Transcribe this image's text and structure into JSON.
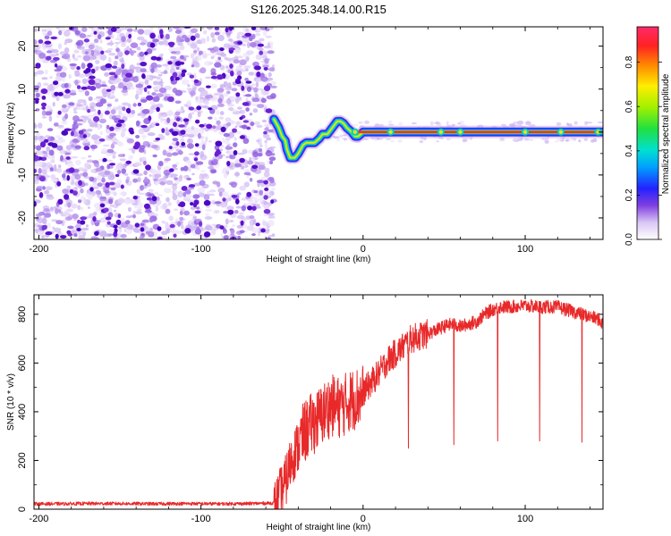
{
  "title": "S126.2025.348.14.00.R15",
  "chart_data": [
    {
      "type": "heatmap",
      "title": "S126.2025.348.14.00.R15",
      "xlabel": "Height of straight line (km)",
      "ylabel": "Frequency (Hz)",
      "xlim": [
        -203,
        148
      ],
      "ylim": [
        -25,
        24.5
      ],
      "x_ticks": [
        -200,
        -100,
        0,
        100
      ],
      "x_tick_labels": [
        "-200",
        "-100",
        "0",
        "100"
      ],
      "y_ticks": [
        -20,
        -10,
        0,
        10,
        20
      ],
      "y_tick_labels": [
        "-20",
        "-10",
        "0",
        "10",
        "20"
      ],
      "noise_region_x": [
        -203,
        -55
      ],
      "ridge": {
        "x": [
          -55,
          -52,
          -50,
          -48,
          -47,
          -45,
          -42,
          -40,
          -37,
          -35,
          -33,
          -30,
          -27,
          -25,
          -22,
          -20,
          -18,
          -16,
          -14,
          -12,
          -10,
          -7,
          -5,
          -3,
          0,
          5,
          10,
          20,
          40,
          60,
          80,
          100,
          120,
          140,
          148
        ],
        "freq": [
          3,
          1,
          -1,
          -2,
          -4,
          -6,
          -6,
          -5,
          -3,
          -2.5,
          -2.5,
          -2.5,
          -1.5,
          -0.5,
          -0.5,
          0.5,
          1.5,
          2.5,
          2.5,
          2,
          1,
          0,
          -1,
          -1,
          0,
          0,
          0,
          0,
          0,
          0,
          0,
          0,
          0,
          0,
          0
        ]
      },
      "colorbar": {
        "label": "Normalized spectral amplitude",
        "ticks": [
          0.0,
          0.2,
          0.4,
          0.6,
          0.8
        ],
        "tick_labels": [
          "0.0",
          "0.2",
          "0.4",
          "0.6",
          "0.8"
        ],
        "range": [
          0,
          0.96
        ]
      }
    },
    {
      "type": "line",
      "xlabel": "Height of straight line (km)",
      "ylabel": "SNR (10 * v/v)",
      "xlim": [
        -203,
        148
      ],
      "ylim": [
        0,
        880
      ],
      "x_ticks": [
        -200,
        -100,
        0,
        100
      ],
      "x_tick_labels": [
        "-200",
        "-100",
        "0",
        "100"
      ],
      "y_ticks": [
        0,
        200,
        400,
        600,
        800
      ],
      "y_tick_labels": [
        "0",
        "200",
        "400",
        "600",
        "800"
      ],
      "color": "#e8292a",
      "series": [
        {
          "name": "SNR",
          "x": [
            -203,
            -190,
            -170,
            -150,
            -130,
            -110,
            -90,
            -70,
            -55,
            -48,
            -44,
            -40,
            -36,
            -32,
            -28,
            -24,
            -20,
            -16,
            -12,
            -8,
            -4,
            0,
            5,
            10,
            15,
            20,
            25,
            30,
            40,
            50,
            55,
            60,
            70,
            75,
            80,
            85,
            90,
            100,
            110,
            120,
            130,
            135,
            140,
            145,
            148
          ],
          "y": [
            22,
            22,
            23,
            23,
            22,
            23,
            22,
            23,
            25,
            130,
            230,
            280,
            330,
            360,
            380,
            410,
            440,
            430,
            440,
            460,
            470,
            480,
            520,
            560,
            610,
            640,
            670,
            700,
            720,
            750,
            760,
            750,
            770,
            800,
            820,
            830,
            830,
            835,
            830,
            830,
            810,
            800,
            790,
            780,
            760
          ]
        }
      ],
      "dropouts": [
        {
          "x": 28,
          "y": 250
        },
        {
          "x": 56,
          "y": 265
        },
        {
          "x": 83,
          "y": 280
        },
        {
          "x": 109,
          "y": 280
        },
        {
          "x": 135,
          "y": 275
        }
      ]
    }
  ]
}
